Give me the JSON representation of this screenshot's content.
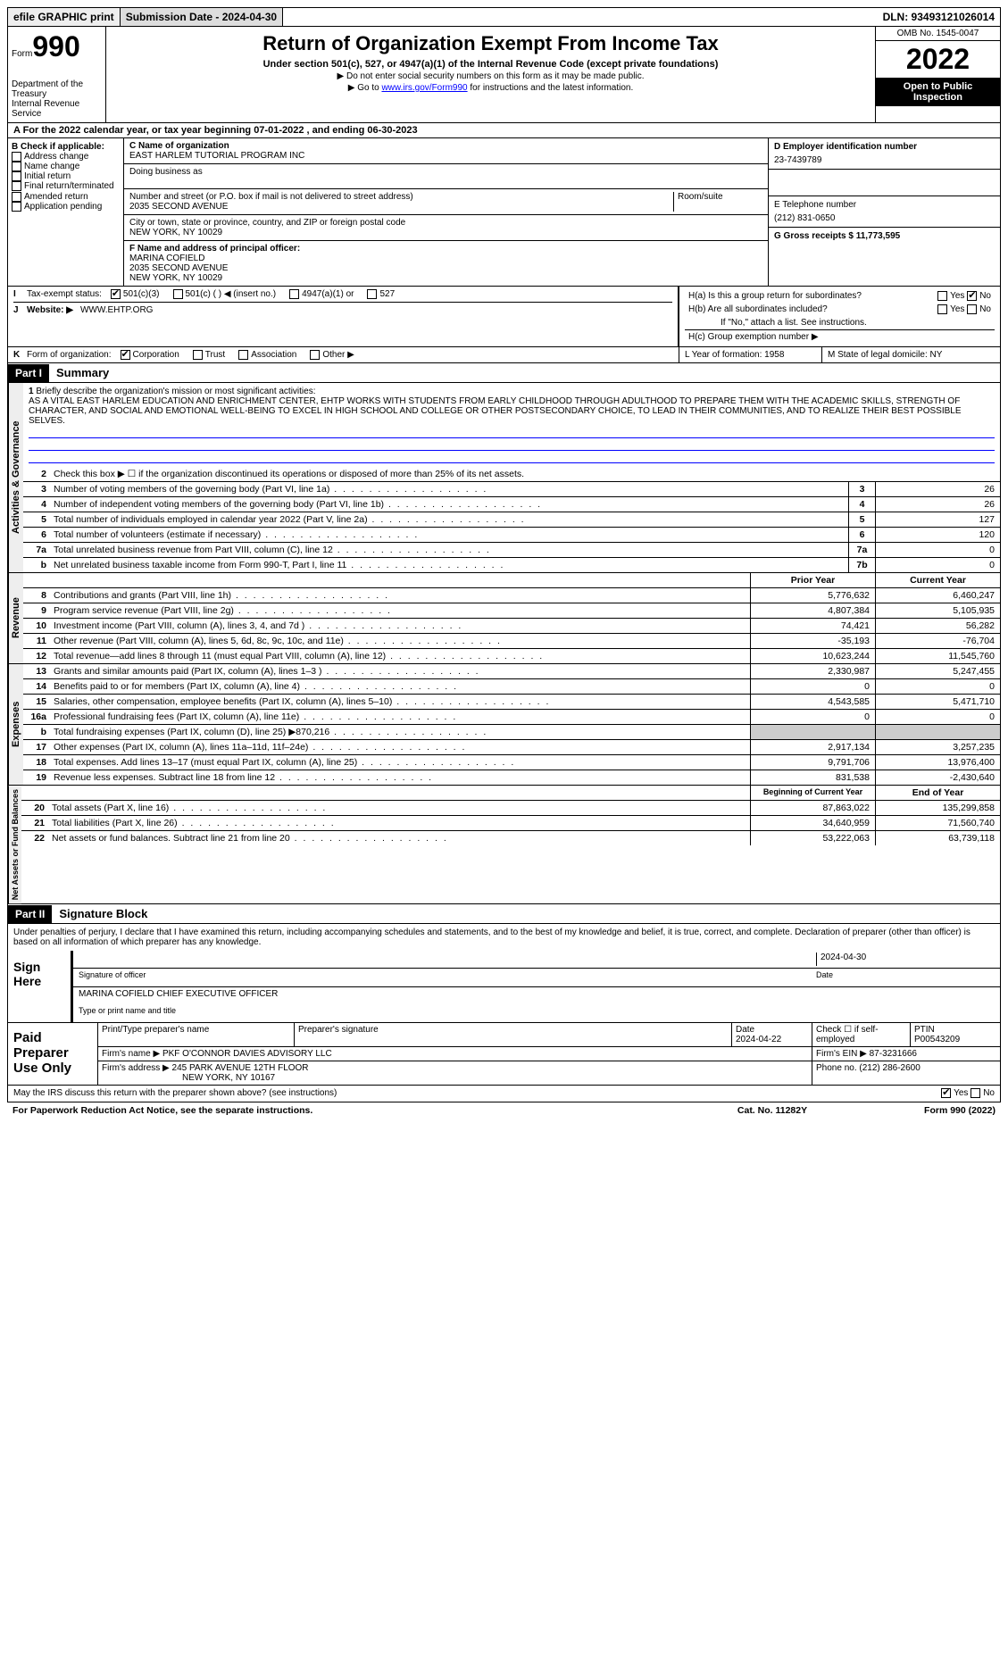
{
  "topbar": {
    "efile": "efile GRAPHIC print",
    "submission": "Submission Date - 2024-04-30",
    "dln": "DLN: 93493121026014"
  },
  "header": {
    "form_prefix": "Form",
    "form_num": "990",
    "dept": "Department of the Treasury",
    "irs": "Internal Revenue Service",
    "title": "Return of Organization Exempt From Income Tax",
    "subtitle": "Under section 501(c), 527, or 4947(a)(1) of the Internal Revenue Code (except private foundations)",
    "note1": "▶ Do not enter social security numbers on this form as it may be made public.",
    "note2_pre": "▶ Go to ",
    "note2_link": "www.irs.gov/Form990",
    "note2_post": " for instructions and the latest information.",
    "omb": "OMB No. 1545-0047",
    "year": "2022",
    "open": "Open to Public Inspection"
  },
  "section_a": "A For the 2022 calendar year, or tax year beginning 07-01-2022   , and ending 06-30-2023",
  "col_b": {
    "hdr": "B Check if applicable:",
    "items": [
      "Address change",
      "Name change",
      "Initial return",
      "Final return/terminated",
      "Amended return",
      "Application pending"
    ]
  },
  "col_c": {
    "name_lbl": "C Name of organization",
    "name": "EAST HARLEM TUTORIAL PROGRAM INC",
    "dba_lbl": "Doing business as",
    "addr_lbl": "Number and street (or P.O. box if mail is not delivered to street address)",
    "room_lbl": "Room/suite",
    "addr": "2035 SECOND AVENUE",
    "city_lbl": "City or town, state or province, country, and ZIP or foreign postal code",
    "city": "NEW YORK, NY  10029",
    "f_lbl": "F Name and address of principal officer:",
    "f_name": "MARINA COFIELD",
    "f_addr": "2035 SECOND AVENUE",
    "f_city": "NEW YORK, NY  10029"
  },
  "col_d": {
    "d_lbl": "D Employer identification number",
    "d_val": "23-7439789",
    "e_lbl": "E Telephone number",
    "e_val": "(212) 831-0650",
    "g_lbl": "G Gross receipts $ 11,773,595"
  },
  "h_section": {
    "ha": "H(a)  Is this a group return for subordinates?",
    "hb": "H(b)  Are all subordinates included?",
    "hb_note": "If \"No,\" attach a list. See instructions.",
    "hc": "H(c)  Group exemption number ▶",
    "yes": "Yes",
    "no": "No"
  },
  "row_i": {
    "lbl": "I",
    "txt": "Tax-exempt status:",
    "opts": [
      "501(c)(3)",
      "501(c) (  ) ◀ (insert no.)",
      "4947(a)(1) or",
      "527"
    ]
  },
  "row_j": {
    "lbl": "J",
    "txt": "Website: ▶",
    "val": "WWW.EHTP.ORG"
  },
  "row_k": {
    "lbl": "K",
    "txt": "Form of organization:",
    "opts": [
      "Corporation",
      "Trust",
      "Association",
      "Other ▶"
    ]
  },
  "row_l": {
    "lbl": "L Year of formation: 1958",
    "m": "M State of legal domicile: NY"
  },
  "part1": {
    "hdr": "Part I",
    "title": "Summary",
    "line1_lbl": "1",
    "line1_txt": "Briefly describe the organization's mission or most significant activities:",
    "mission": "AS A VITAL EAST HARLEM EDUCATION AND ENRICHMENT CENTER, EHTP WORKS WITH STUDENTS FROM EARLY CHILDHOOD THROUGH ADULTHOOD TO PREPARE THEM WITH THE ACADEMIC SKILLS, STRENGTH OF CHARACTER, AND SOCIAL AND EMOTIONAL WELL-BEING TO EXCEL IN HIGH SCHOOL AND COLLEGE OR OTHER POSTSECONDARY CHOICE, TO LEAD IN THEIR COMMUNITIES, AND TO REALIZE THEIR BEST POSSIBLE SELVES.",
    "line2": "Check this box ▶ ☐  if the organization discontinued its operations or disposed of more than 25% of its net assets.",
    "vert_ag": "Activities & Governance",
    "vert_rev": "Revenue",
    "vert_exp": "Expenses",
    "vert_net": "Net Assets or Fund Balances"
  },
  "gov_lines": [
    {
      "n": "3",
      "t": "Number of voting members of the governing body (Part VI, line 1a)",
      "b": "3",
      "v": "26"
    },
    {
      "n": "4",
      "t": "Number of independent voting members of the governing body (Part VI, line 1b)",
      "b": "4",
      "v": "26"
    },
    {
      "n": "5",
      "t": "Total number of individuals employed in calendar year 2022 (Part V, line 2a)",
      "b": "5",
      "v": "127"
    },
    {
      "n": "6",
      "t": "Total number of volunteers (estimate if necessary)",
      "b": "6",
      "v": "120"
    },
    {
      "n": "7a",
      "t": "Total unrelated business revenue from Part VIII, column (C), line 12",
      "b": "7a",
      "v": "0"
    },
    {
      "n": "  b",
      "t": "Net unrelated business taxable income from Form 990-T, Part I, line 11",
      "b": "7b",
      "v": "0"
    }
  ],
  "rev_hdr": {
    "prior": "Prior Year",
    "curr": "Current Year"
  },
  "rev_lines": [
    {
      "n": "8",
      "t": "Contributions and grants (Part VIII, line 1h)",
      "p": "5,776,632",
      "c": "6,460,247"
    },
    {
      "n": "9",
      "t": "Program service revenue (Part VIII, line 2g)",
      "p": "4,807,384",
      "c": "5,105,935"
    },
    {
      "n": "10",
      "t": "Investment income (Part VIII, column (A), lines 3, 4, and 7d )",
      "p": "74,421",
      "c": "56,282"
    },
    {
      "n": "11",
      "t": "Other revenue (Part VIII, column (A), lines 5, 6d, 8c, 9c, 10c, and 11e)",
      "p": "-35,193",
      "c": "-76,704"
    },
    {
      "n": "12",
      "t": "Total revenue—add lines 8 through 11 (must equal Part VIII, column (A), line 12)",
      "p": "10,623,244",
      "c": "11,545,760"
    }
  ],
  "exp_lines": [
    {
      "n": "13",
      "t": "Grants and similar amounts paid (Part IX, column (A), lines 1–3 )",
      "p": "2,330,987",
      "c": "5,247,455"
    },
    {
      "n": "14",
      "t": "Benefits paid to or for members (Part IX, column (A), line 4)",
      "p": "0",
      "c": "0"
    },
    {
      "n": "15",
      "t": "Salaries, other compensation, employee benefits (Part IX, column (A), lines 5–10)",
      "p": "4,543,585",
      "c": "5,471,710"
    },
    {
      "n": "16a",
      "t": "Professional fundraising fees (Part IX, column (A), line 11e)",
      "p": "0",
      "c": "0"
    },
    {
      "n": "b",
      "t": "Total fundraising expenses (Part IX, column (D), line 25) ▶870,216",
      "p": "",
      "c": "",
      "shaded": true
    },
    {
      "n": "17",
      "t": "Other expenses (Part IX, column (A), lines 11a–11d, 11f–24e)",
      "p": "2,917,134",
      "c": "3,257,235"
    },
    {
      "n": "18",
      "t": "Total expenses. Add lines 13–17 (must equal Part IX, column (A), line 25)",
      "p": "9,791,706",
      "c": "13,976,400"
    },
    {
      "n": "19",
      "t": "Revenue less expenses. Subtract line 18 from line 12",
      "p": "831,538",
      "c": "-2,430,640"
    }
  ],
  "net_hdr": {
    "beg": "Beginning of Current Year",
    "end": "End of Year"
  },
  "net_lines": [
    {
      "n": "20",
      "t": "Total assets (Part X, line 16)",
      "p": "87,863,022",
      "c": "135,299,858"
    },
    {
      "n": "21",
      "t": "Total liabilities (Part X, line 26)",
      "p": "34,640,959",
      "c": "71,560,740"
    },
    {
      "n": "22",
      "t": "Net assets or fund balances. Subtract line 21 from line 20",
      "p": "53,222,063",
      "c": "63,739,118"
    }
  ],
  "part2": {
    "hdr": "Part II",
    "title": "Signature Block",
    "text": "Under penalties of perjury, I declare that I have examined this return, including accompanying schedules and statements, and to the best of my knowledge and belief, it is true, correct, and complete. Declaration of preparer (other than officer) is based on all information of which preparer has any knowledge.",
    "sign_here": "Sign Here",
    "sig_officer": "Signature of officer",
    "date": "Date",
    "sig_date": "2024-04-30",
    "name_title": "MARINA COFIELD  CHIEF EXECUTIVE OFFICER",
    "type_name": "Type or print name and title",
    "paid": "Paid Preparer Use Only",
    "prep_name_lbl": "Print/Type preparer's name",
    "prep_sig_lbl": "Preparer's signature",
    "prep_date_lbl": "Date",
    "prep_date": "2024-04-22",
    "check_if": "Check ☐ if self-employed",
    "ptin_lbl": "PTIN",
    "ptin": "P00543209",
    "firm_name_lbl": "Firm's name    ▶",
    "firm_name": "PKF O'CONNOR DAVIES ADVISORY LLC",
    "firm_ein_lbl": "Firm's EIN ▶",
    "firm_ein": "87-3231666",
    "firm_addr_lbl": "Firm's address ▶",
    "firm_addr": "245 PARK AVENUE 12TH FLOOR",
    "firm_city": "NEW YORK, NY  10167",
    "phone_lbl": "Phone no.",
    "phone": "(212) 286-2600",
    "may_irs": "May the IRS discuss this return with the preparer shown above? (see instructions)",
    "yes": "Yes",
    "no": "No"
  },
  "footer": {
    "paperwork": "For Paperwork Reduction Act Notice, see the separate instructions.",
    "cat": "Cat. No. 11282Y",
    "form": "Form 990 (2022)"
  }
}
